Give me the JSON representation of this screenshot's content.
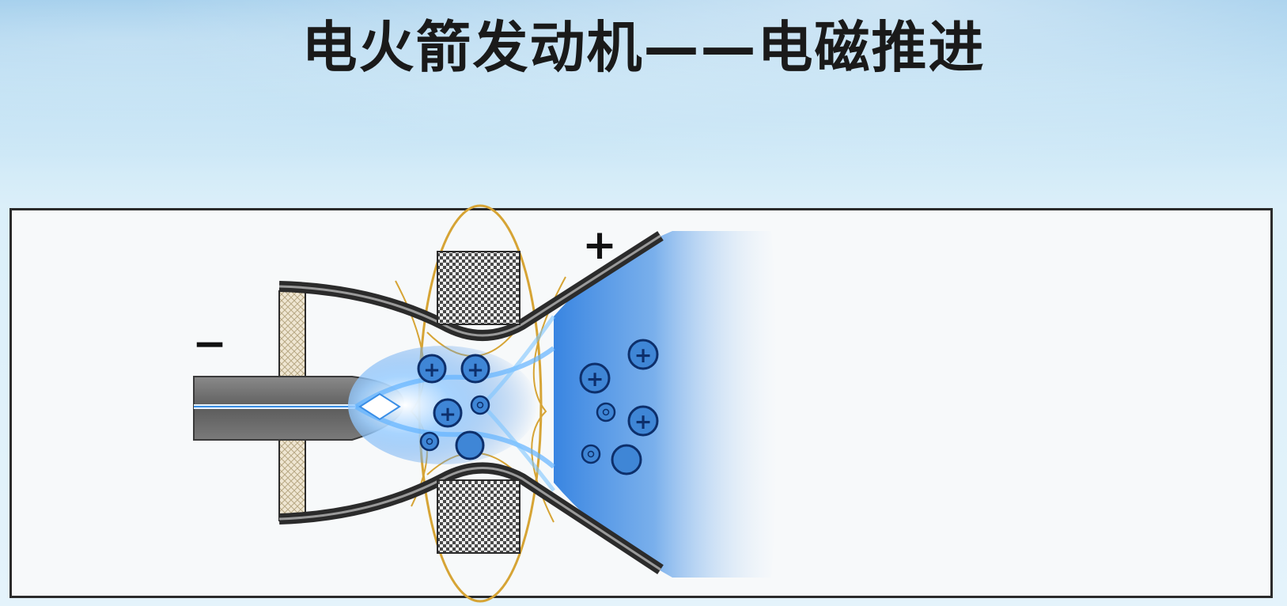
{
  "title": "电火箭发动机——电磁推进",
  "diagram": {
    "cathode_sign": "−",
    "anode_sign": "+",
    "ion_sign": "+",
    "colors": {
      "plasma": "#2f7fe0",
      "ion_fill": "#3f86d6",
      "ion_stroke": "#0d2f6b",
      "field_lines": "#d6a435",
      "nozzle": "#2b2b2b",
      "cathode": "#6e6e6e",
      "insulator": "#e8dcc4",
      "coil": "#555555"
    }
  }
}
